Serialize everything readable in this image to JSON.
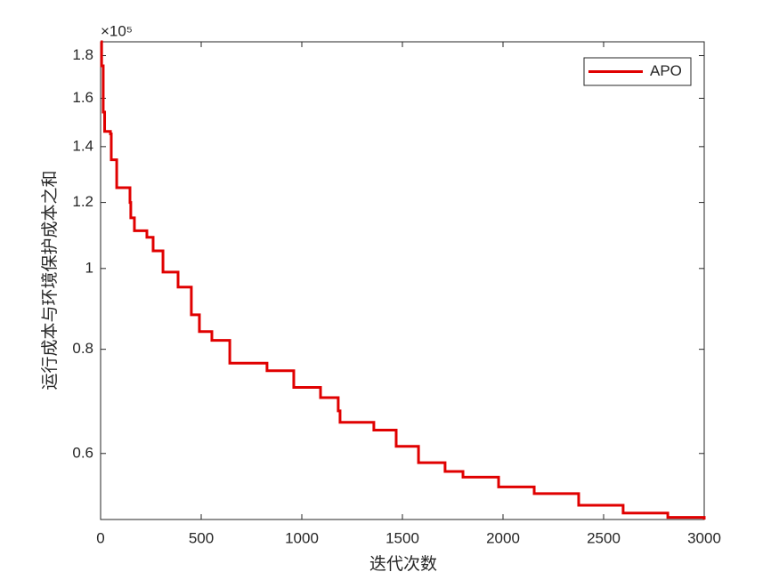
{
  "chart_data": {
    "type": "line",
    "x_label": "迭代次数",
    "y_label": "运行成本与环境保护成本之和",
    "y_multiplier": "×10⁵",
    "x": [
      0,
      5,
      13,
      20,
      49,
      53,
      80,
      146,
      150,
      168,
      230,
      261,
      310,
      385,
      451,
      491,
      553,
      642,
      827,
      960,
      1093,
      1181,
      1190,
      1358,
      1469,
      1580,
      1712,
      1801,
      1978,
      2155,
      2376,
      2597,
      2819,
      3000
    ],
    "series": [
      {
        "name": "APO",
        "color": "#e00000",
        "values": [
          1.87,
          1.75,
          1.54,
          1.46,
          1.45,
          1.35,
          1.25,
          1.2,
          1.15,
          1.11,
          1.09,
          1.05,
          0.99,
          0.95,
          0.88,
          0.84,
          0.82,
          0.77,
          0.754,
          0.72,
          0.7,
          0.675,
          0.654,
          0.64,
          0.612,
          0.585,
          0.571,
          0.562,
          0.547,
          0.537,
          0.52,
          0.509,
          0.503,
          0.5
        ]
      }
    ],
    "xlim": [
      0,
      3000
    ],
    "xticks": [
      0,
      500,
      1000,
      1500,
      2000,
      2500,
      3000
    ],
    "ylim": [
      0.5,
      1.87
    ],
    "yticks": [
      0.6,
      0.8,
      1,
      1.2,
      1.4,
      1.6,
      1.8
    ],
    "log_y": true,
    "step": true,
    "legend": "top-right"
  }
}
